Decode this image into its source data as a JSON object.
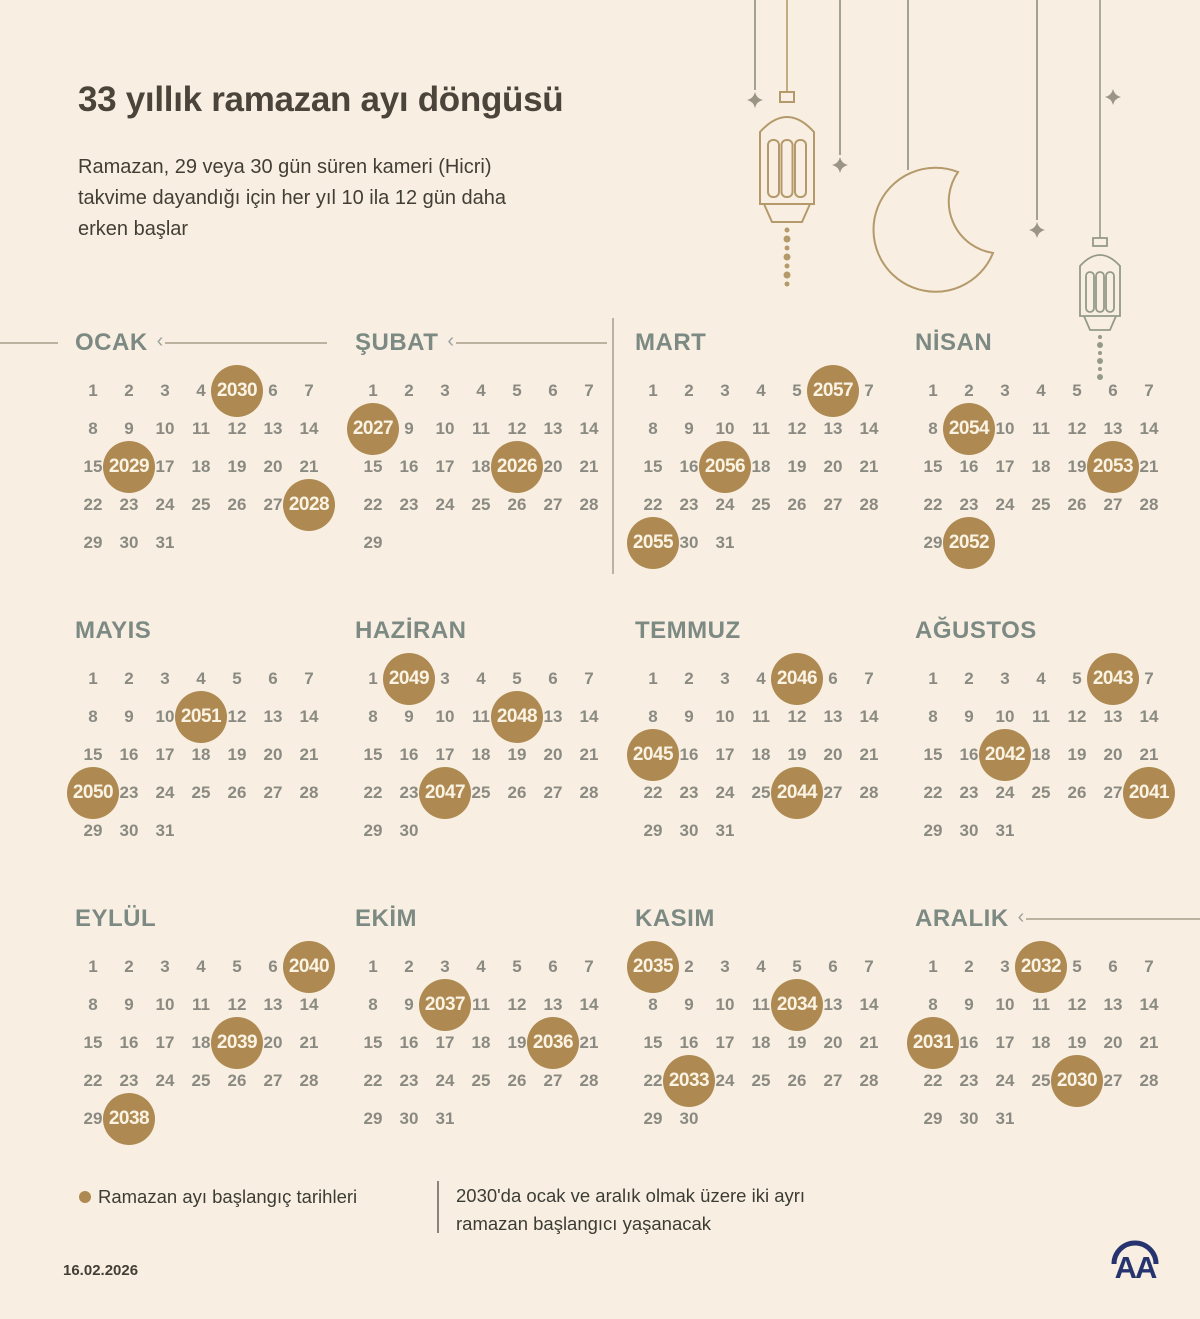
{
  "title": "33 yıllık ramazan ayı döngüsü",
  "subtitle_lines": [
    "Ramazan, 29 veya 30 gün süren kameri (Hicri)",
    "takvime dayandığı için her yıl 10 ila 12 gün daha",
    "erken başlar"
  ],
  "legend": {
    "dot_label": "Ramazan ayı başlangıç tarihleri",
    "note_lines": [
      "2030'da ocak ve aralık olmak üzere iki ayrı",
      "ramazan başlangıcı yaşanacak"
    ]
  },
  "footer_date": "16.02.2026",
  "logo_text": "AA",
  "colors": {
    "background": "#f8efe2",
    "circle": "#ae8a52",
    "circle_text": "#faf3e4",
    "day_text": "#8a8a82",
    "month_text": "#7c8a83",
    "title_text": "#4b443a",
    "line": "#bdb2a0",
    "logo": "#27336e",
    "lantern": "#b49a6a",
    "string": "#8f8d7f",
    "small_lantern": "#949a88"
  },
  "months": [
    {
      "name": "OCAK",
      "days": 31,
      "arrow": true,
      "highlights": [
        {
          "day": 5,
          "year": "2030"
        },
        {
          "day": 16,
          "year": "2029"
        },
        {
          "day": 28,
          "year": "2028"
        }
      ]
    },
    {
      "name": "ŞUBAT",
      "days": 29,
      "arrow": true,
      "highlights": [
        {
          "day": 8,
          "year": "2027"
        },
        {
          "day": 19,
          "year": "2026"
        }
      ]
    },
    {
      "name": "MART",
      "days": 31,
      "arrow": false,
      "highlights": [
        {
          "day": 6,
          "year": "2057"
        },
        {
          "day": 17,
          "year": "2056"
        },
        {
          "day": 29,
          "year": "2055"
        }
      ]
    },
    {
      "name": "NİSAN",
      "days": 30,
      "arrow": false,
      "highlights": [
        {
          "day": 9,
          "year": "2054"
        },
        {
          "day": 20,
          "year": "2053"
        },
        {
          "day": 30,
          "year": "2052"
        }
      ]
    },
    {
      "name": "MAYIS",
      "days": 31,
      "arrow": false,
      "highlights": [
        {
          "day": 11,
          "year": "2051"
        },
        {
          "day": 22,
          "year": "2050"
        }
      ]
    },
    {
      "name": "HAZİRAN",
      "days": 30,
      "arrow": false,
      "highlights": [
        {
          "day": 2,
          "year": "2049"
        },
        {
          "day": 12,
          "year": "2048"
        },
        {
          "day": 24,
          "year": "2047"
        }
      ]
    },
    {
      "name": "TEMMUZ",
      "days": 31,
      "arrow": false,
      "highlights": [
        {
          "day": 5,
          "year": "2046"
        },
        {
          "day": 15,
          "year": "2045"
        },
        {
          "day": 26,
          "year": "2044"
        }
      ]
    },
    {
      "name": "AĞUSTOS",
      "days": 31,
      "arrow": false,
      "highlights": [
        {
          "day": 6,
          "year": "2043"
        },
        {
          "day": 17,
          "year": "2042"
        },
        {
          "day": 28,
          "year": "2041"
        }
      ]
    },
    {
      "name": "EYLÜL",
      "days": 30,
      "arrow": false,
      "highlights": [
        {
          "day": 7,
          "year": "2040"
        },
        {
          "day": 19,
          "year": "2039"
        },
        {
          "day": 30,
          "year": "2038"
        }
      ]
    },
    {
      "name": "EKİM",
      "days": 31,
      "arrow": false,
      "highlights": [
        {
          "day": 10,
          "year": "2037"
        },
        {
          "day": 20,
          "year": "2036"
        }
      ]
    },
    {
      "name": "KASIM",
      "days": 30,
      "arrow": false,
      "highlights": [
        {
          "day": 1,
          "year": "2035"
        },
        {
          "day": 12,
          "year": "2034"
        },
        {
          "day": 23,
          "year": "2033"
        }
      ]
    },
    {
      "name": "ARALIK",
      "days": 31,
      "arrow": true,
      "highlights": [
        {
          "day": 4,
          "year": "2032"
        },
        {
          "day": 15,
          "year": "2031"
        },
        {
          "day": 26,
          "year": "2030"
        }
      ]
    }
  ]
}
